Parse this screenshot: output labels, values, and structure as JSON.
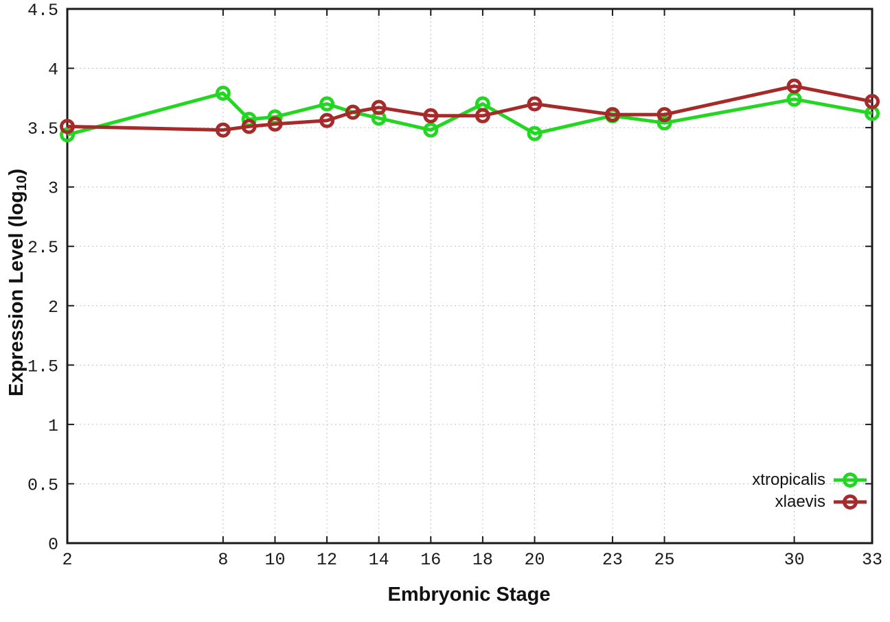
{
  "chart_data": {
    "type": "line",
    "title": "",
    "xlabel": "Embryonic Stage",
    "ylabel": "Expression Level (log10)",
    "ylabel_parts": {
      "prefix": "Expression Level (log",
      "sub": "10",
      "suffix": ")"
    },
    "xlim": [
      2,
      33
    ],
    "ylim": [
      0,
      4.5
    ],
    "grid": true,
    "grid_style": "dotted",
    "legend_position": "bottom-right-inside",
    "x_tick_values": [
      2,
      8,
      10,
      12,
      14,
      16,
      18,
      20,
      23,
      25,
      30,
      33
    ],
    "x_tick_labels": [
      "2",
      "8",
      "10",
      "12",
      "14",
      "16",
      "18",
      "20",
      "23",
      "25",
      "30",
      "33"
    ],
    "y_tick_values": [
      0,
      0.5,
      1,
      1.5,
      2,
      2.5,
      3,
      3.5,
      4,
      4.5
    ],
    "y_tick_labels": [
      "0",
      "0.5",
      "1",
      "1.5",
      "2",
      "2.5",
      "3",
      "3.5",
      "4",
      "4.5"
    ],
    "x": [
      2,
      8,
      9,
      10,
      12,
      13,
      14,
      16,
      18,
      20,
      23,
      25,
      30,
      33
    ],
    "series": [
      {
        "name": "xtropicalis",
        "color": "#22d622",
        "marker": "open-circle",
        "values": [
          3.44,
          3.79,
          3.57,
          3.59,
          3.7,
          3.63,
          3.58,
          3.48,
          3.7,
          3.45,
          3.6,
          3.54,
          3.74,
          3.62
        ]
      },
      {
        "name": "xlaevis",
        "color": "#a52a2a",
        "marker": "open-circle",
        "values": [
          3.51,
          3.48,
          3.51,
          3.53,
          3.56,
          3.63,
          3.67,
          3.6,
          3.6,
          3.7,
          3.61,
          3.61,
          3.85,
          3.72
        ]
      }
    ],
    "colors": {
      "axis": "#1a1a1a",
      "grid": "#c0c0c0",
      "tick_text": "#1a1a1a",
      "background": "#ffffff"
    }
  }
}
